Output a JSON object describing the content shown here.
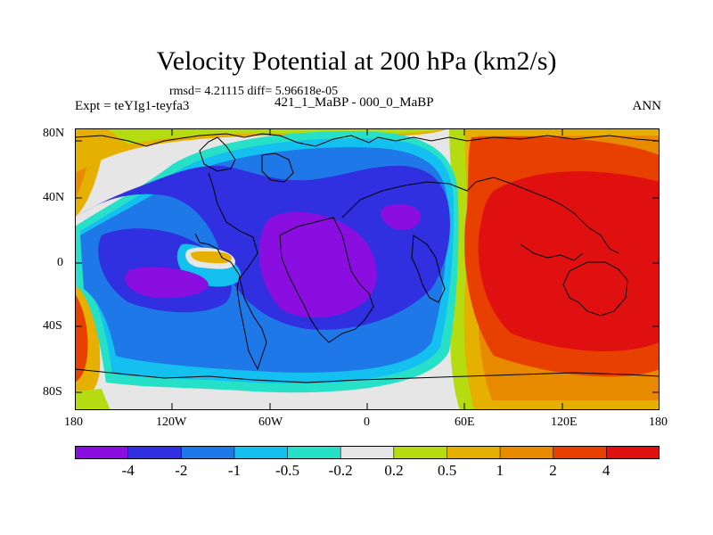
{
  "title": "Velocity Potential at 200 hPa (km2/s)",
  "stats": "rmsd= 4.21115 diff= 5.96618e-05",
  "experiment": "Expt = teYIg1-teyfa3",
  "subtitle": "421_1_MaBP - 000_0_MaBP",
  "season": "ANN",
  "map": {
    "y_ticks": [
      "80N",
      "40N",
      "0",
      "40S",
      "80S"
    ],
    "x_ticks": [
      "180",
      "120W",
      "60W",
      "0",
      "60E",
      "120E",
      "180"
    ]
  },
  "colorbar": {
    "colors": [
      "#8a0ee0",
      "#3030e0",
      "#1e78e8",
      "#14c0f0",
      "#26e0c8",
      "#e6e6e6",
      "#b4dc10",
      "#e6b000",
      "#e88a00",
      "#e84000",
      "#e01010"
    ],
    "labels": [
      "-4",
      "-2",
      "-1",
      "-0.5",
      "-0.2",
      "0.2",
      "0.5",
      "1",
      "2",
      "4"
    ]
  }
}
